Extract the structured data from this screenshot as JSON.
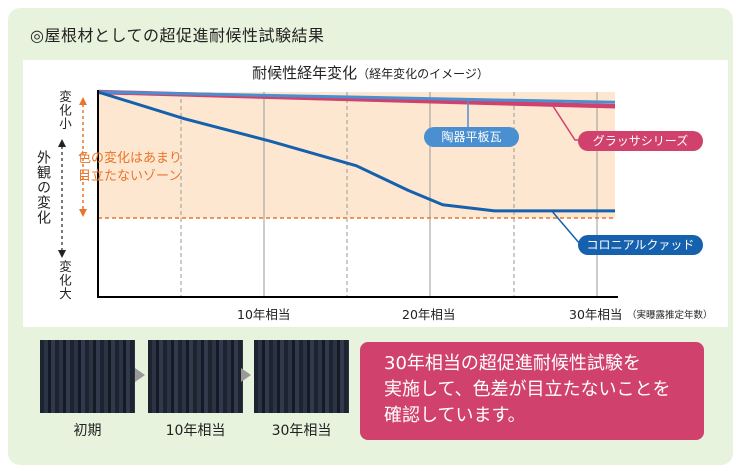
{
  "heading": "◎屋根材としての超促進耐候性試験結果",
  "chart_data": {
    "type": "line",
    "title": "耐候性経年変化",
    "subtitle": "（経年変化のイメージ）",
    "ylabel": "外観の変化",
    "y_top_label": "変化小",
    "y_bottom_label": "変化大",
    "zone_label_line1": "色の変化はあまり",
    "zone_label_line2": "目立たないゾーン",
    "x_ticks": [
      "10年相当",
      "20年相当",
      "30年相当"
    ],
    "x_note": "（実曝露推定年数）",
    "xlim": [
      0,
      30
    ],
    "series": [
      {
        "name": "陶器平板瓦",
        "color": "#4a8fd0",
        "x": [
          0,
          30
        ],
        "y": [
          0,
          0.05
        ]
      },
      {
        "name": "グラッサシリーズ",
        "color": "#d0416e",
        "x": [
          0,
          30
        ],
        "y": [
          0,
          0.07
        ]
      },
      {
        "name": "コロニアルクァッド",
        "color": "#1561ad",
        "x": [
          0,
          5,
          10,
          15,
          18,
          20,
          23,
          25,
          30
        ],
        "y": [
          0,
          0.13,
          0.24,
          0.36,
          0.48,
          0.55,
          0.58,
          0.58,
          0.58
        ]
      }
    ]
  },
  "swatches": {
    "captions": [
      "初期",
      "10年相当",
      "30年相当"
    ]
  },
  "callout": {
    "line1": "30年相当の超促進耐候性試験を",
    "line2": "実施して、色差が目立たないことを",
    "line3": "確認しています。"
  },
  "colors": {
    "accent": "#d0416e",
    "zone": "#fde7d0",
    "orange": "#e8752a"
  }
}
